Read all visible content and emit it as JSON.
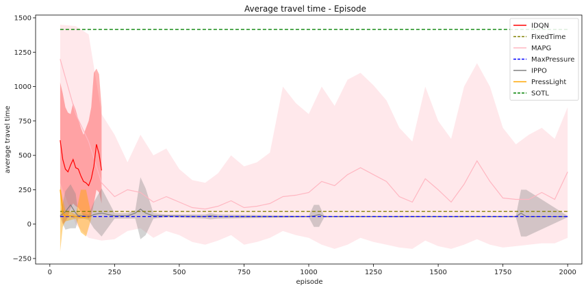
{
  "chart_data": {
    "type": "line",
    "title": "Average travel time - Episode",
    "xlabel": "episode",
    "ylabel": "average travel time",
    "xlim": [
      -55,
      2055
    ],
    "ylim": [
      -290,
      1520
    ],
    "xticks": [
      0,
      250,
      500,
      750,
      1000,
      1250,
      1500,
      1750,
      2000
    ],
    "yticks": [
      -250,
      0,
      250,
      500,
      750,
      1000,
      1250,
      1500
    ],
    "grid": false,
    "legend_position": "top-right",
    "series": [
      {
        "name": "IDQN",
        "color": "#ff0000",
        "style": "solid",
        "x": [
          40,
          50,
          60,
          70,
          80,
          90,
          100,
          110,
          120,
          130,
          140,
          150,
          160,
          170,
          180,
          190,
          200
        ],
        "y": [
          610,
          470,
          400,
          380,
          430,
          470,
          410,
          400,
          350,
          310,
          300,
          280,
          330,
          420,
          580,
          510,
          390
        ],
        "band_low": [
          280,
          0,
          20,
          50,
          120,
          150,
          130,
          120,
          90,
          60,
          50,
          40,
          60,
          150,
          250,
          230,
          150
        ],
        "band_high": [
          1030,
          950,
          850,
          810,
          800,
          880,
          830,
          760,
          700,
          650,
          700,
          750,
          850,
          1100,
          1130,
          1090,
          850
        ]
      },
      {
        "name": "FixedTime",
        "color": "#808000",
        "style": "dashed",
        "x": [
          40,
          2000
        ],
        "y": [
          92,
          92
        ]
      },
      {
        "name": "MAPG",
        "color": "#ffb6c1",
        "style": "solid",
        "x": [
          40,
          100,
          150,
          200,
          250,
          300,
          350,
          400,
          450,
          500,
          550,
          600,
          650,
          700,
          750,
          800,
          850,
          900,
          950,
          1000,
          1050,
          1100,
          1150,
          1200,
          1250,
          1300,
          1350,
          1400,
          1450,
          1500,
          1550,
          1600,
          1650,
          1700,
          1750,
          1800,
          1850,
          1900,
          1950,
          2000
        ],
        "y": [
          1200,
          800,
          600,
          300,
          200,
          250,
          230,
          160,
          200,
          160,
          120,
          110,
          130,
          170,
          120,
          130,
          150,
          200,
          210,
          230,
          310,
          280,
          360,
          410,
          360,
          310,
          200,
          160,
          330,
          250,
          160,
          290,
          460,
          310,
          190,
          180,
          180,
          230,
          180,
          380
        ],
        "band_low": [
          300,
          0,
          -100,
          -120,
          -110,
          -50,
          -30,
          -100,
          -50,
          -80,
          -130,
          -150,
          -120,
          -80,
          -150,
          -130,
          -100,
          -50,
          -80,
          -100,
          -150,
          -180,
          -150,
          -100,
          -130,
          -150,
          -170,
          -180,
          -120,
          -160,
          -180,
          -150,
          -110,
          -150,
          -170,
          -160,
          -150,
          -140,
          -140,
          -100
        ],
        "band_high": [
          1450,
          1440,
          1380,
          800,
          650,
          450,
          650,
          500,
          550,
          400,
          320,
          300,
          370,
          500,
          420,
          450,
          520,
          1000,
          880,
          800,
          1000,
          860,
          1050,
          1100,
          1010,
          900,
          700,
          600,
          1000,
          750,
          620,
          1000,
          1170,
          1000,
          700,
          580,
          650,
          700,
          620,
          850
        ]
      },
      {
        "name": "MaxPressure",
        "color": "#0000ff",
        "style": "dashed",
        "x": [
          40,
          2000
        ],
        "y": [
          55,
          55
        ]
      },
      {
        "name": "IPPO",
        "color": "#808080",
        "style": "solid",
        "x": [
          40,
          60,
          80,
          100,
          110,
          130,
          150,
          170,
          200,
          250,
          300,
          330,
          350,
          370,
          400,
          450,
          600,
          620,
          650,
          1000,
          1020,
          1040,
          1060,
          1100,
          1800,
          1820,
          1840,
          2000
        ],
        "y": [
          60,
          90,
          140,
          80,
          60,
          60,
          50,
          70,
          80,
          60,
          60,
          80,
          110,
          80,
          60,
          60,
          55,
          60,
          55,
          55,
          60,
          70,
          55,
          55,
          55,
          80,
          55,
          55
        ],
        "band_low": [
          50,
          -40,
          -30,
          -30,
          40,
          40,
          30,
          -30,
          -90,
          40,
          40,
          40,
          -110,
          -80,
          40,
          50,
          40,
          35,
          40,
          50,
          -20,
          -20,
          50,
          50,
          50,
          -90,
          -90,
          50
        ],
        "band_high": [
          70,
          240,
          290,
          220,
          80,
          80,
          70,
          160,
          260,
          80,
          80,
          100,
          340,
          260,
          80,
          70,
          70,
          80,
          70,
          60,
          140,
          140,
          60,
          60,
          60,
          250,
          250,
          60
        ]
      },
      {
        "name": "PressLight",
        "color": "#ffa500",
        "style": "solid",
        "x": [
          40,
          50,
          60,
          80,
          100,
          120,
          140,
          160
        ],
        "y": [
          250,
          80,
          60,
          60,
          55,
          50,
          50,
          55
        ],
        "band_low": [
          -200,
          -20,
          20,
          30,
          40,
          -60,
          -90,
          40
        ],
        "band_high": [
          280,
          180,
          100,
          90,
          70,
          250,
          250,
          70
        ]
      },
      {
        "name": "SOTL",
        "color": "#008000",
        "style": "dashed",
        "x": [
          40,
          2000
        ],
        "y": [
          1415,
          1415
        ]
      }
    ]
  }
}
